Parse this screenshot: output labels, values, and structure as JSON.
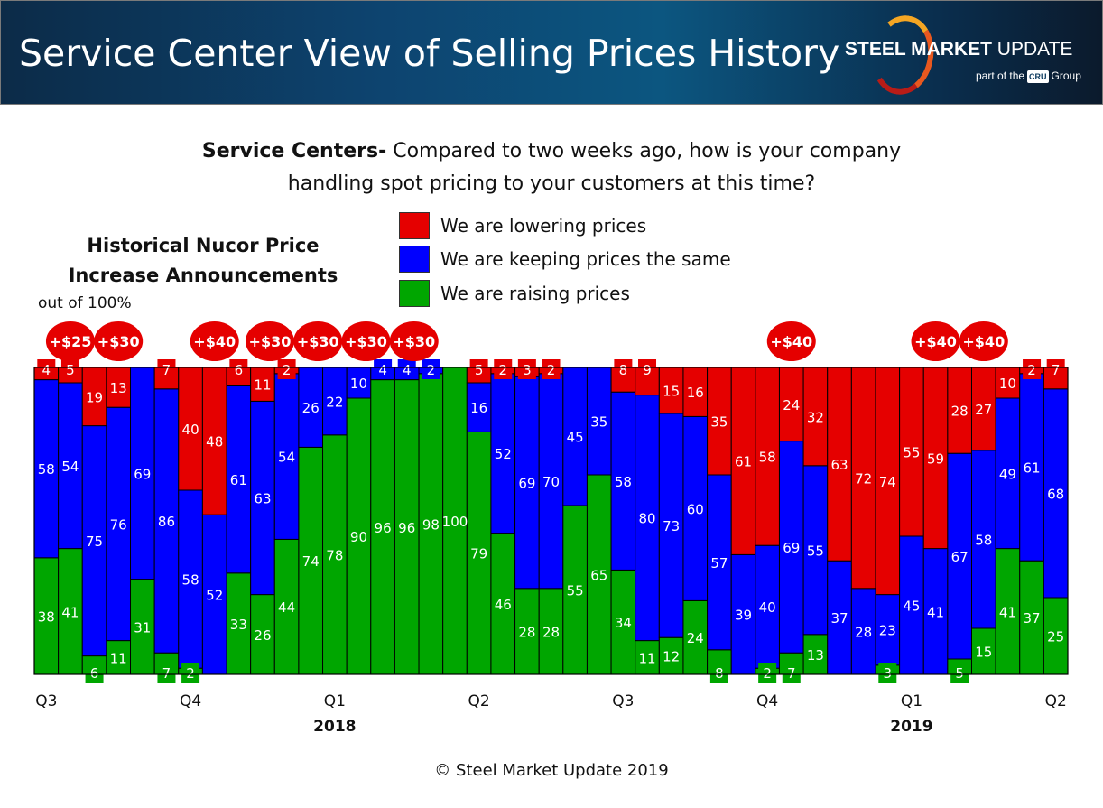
{
  "header": {
    "title": "Service Center View of Selling Prices History",
    "logo_text": "STEEL MARKET UPDATE",
    "logo_sub": "part of the CRU Group"
  },
  "question": {
    "bold": "Service Centers-",
    "line1": " Compared to two weeks ago, how is your company",
    "line2": "handling spot pricing to your customers at this time?"
  },
  "annotation_title": "Historical Nucor Price Increase Announcements",
  "footer": "© Steel Market Update 2019",
  "chart_data": {
    "type": "bar",
    "stacked": true,
    "ylabel": "out of 100%",
    "ylim": [
      0,
      100
    ],
    "colors": {
      "lower": "#e50000",
      "same": "#0000ff",
      "raise": "#00a600"
    },
    "legend": [
      "We are lowering prices",
      "We are keeping prices the same",
      "We are raising prices"
    ],
    "legend_placement": "top-center",
    "series": [
      {
        "name": "We are raising prices",
        "key": "raise",
        "values": [
          38,
          41,
          6,
          11,
          31,
          7,
          2,
          0,
          33,
          26,
          44,
          74,
          78,
          90,
          96,
          96,
          98,
          100,
          79,
          46,
          28,
          28,
          55,
          65,
          34,
          11,
          12,
          24,
          8,
          0,
          2,
          7,
          13,
          0,
          0,
          3,
          0,
          0,
          5,
          15,
          41,
          37,
          25
        ]
      },
      {
        "name": "We are keeping prices the same",
        "key": "same",
        "values": [
          58,
          54,
          75,
          76,
          69,
          86,
          58,
          52,
          61,
          63,
          54,
          26,
          22,
          10,
          4,
          4,
          2,
          0,
          16,
          52,
          69,
          70,
          45,
          35,
          58,
          80,
          73,
          60,
          57,
          39,
          40,
          69,
          55,
          37,
          28,
          23,
          45,
          41,
          67,
          58,
          49,
          61,
          68
        ]
      },
      {
        "name": "We are lowering prices",
        "key": "lower",
        "values": [
          4,
          5,
          19,
          13,
          0,
          7,
          40,
          48,
          6,
          11,
          2,
          0,
          0,
          0,
          0,
          0,
          0,
          0,
          5,
          2,
          3,
          2,
          0,
          0,
          8,
          9,
          15,
          16,
          35,
          61,
          58,
          24,
          32,
          63,
          72,
          74,
          55,
          59,
          28,
          27,
          10,
          2,
          7
        ]
      }
    ],
    "x_tick_labels": [
      {
        "bar": 0,
        "label": "Q3"
      },
      {
        "bar": 6,
        "label": "Q4"
      },
      {
        "bar": 12,
        "label": "Q1",
        "year": "2018"
      },
      {
        "bar": 18,
        "label": "Q2"
      },
      {
        "bar": 24,
        "label": "Q3"
      },
      {
        "bar": 30,
        "label": "Q4"
      },
      {
        "bar": 36,
        "label": "Q1",
        "year": "2019"
      },
      {
        "bar": 42,
        "label": "Q2"
      }
    ],
    "announcements": [
      {
        "bar": 1,
        "label": "+$25"
      },
      {
        "bar": 3,
        "label": "+$30"
      },
      {
        "bar": 7,
        "label": "+$40"
      },
      {
        "bar": 9,
        "label": "+$30"
      },
      {
        "bar": 11,
        "label": "+$30"
      },
      {
        "bar": 13,
        "label": "+$30"
      },
      {
        "bar": 15,
        "label": "+$30"
      },
      {
        "bar": 31,
        "label": "+$40"
      },
      {
        "bar": 37,
        "label": "+$40"
      },
      {
        "bar": 39,
        "label": "+$40"
      }
    ]
  }
}
